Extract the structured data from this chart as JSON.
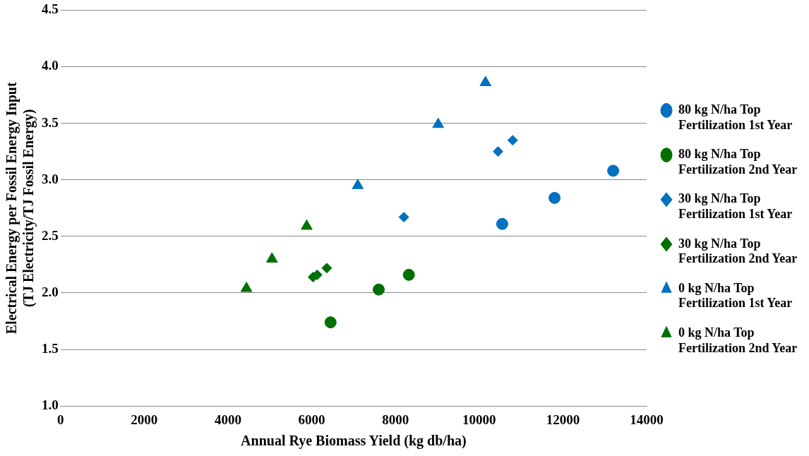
{
  "chart_data": {
    "type": "scatter",
    "xlabel": "Annual Rye Biomass Yield (kg db/ha)",
    "ylabel": "Electrical Energy per Fossil Energy Input (TJ Electricity/TJ Fossil Energy)",
    "xlim": [
      0,
      14000
    ],
    "xticks": [
      0,
      2000,
      4000,
      6000,
      8000,
      10000,
      12000,
      14000
    ],
    "ylim": [
      1,
      4.5
    ],
    "yticks": [
      {
        "value": 1,
        "label": "1.0"
      },
      {
        "value": 1.5,
        "label": "1.5"
      },
      {
        "value": 2,
        "label": "2.0"
      },
      {
        "value": 2.5,
        "label": "2.5"
      },
      {
        "value": 3,
        "label": "3.0"
      },
      {
        "value": 3.5,
        "label": "3.5"
      },
      {
        "value": 4,
        "label": "4.0"
      },
      {
        "value": 4.5,
        "label": "4.5"
      }
    ],
    "grid": "y",
    "legend": "right",
    "series": [
      {
        "name": "80 kg N/ha Top Fertilization 1st Year",
        "color": "#0070c0",
        "marker": "circle",
        "x": [
          10550,
          11800,
          13200
        ],
        "values": [
          2.61,
          2.84,
          3.08
        ]
      },
      {
        "name": "80 kg N/ha Top Fertilization 2nd Year",
        "color": "#007000",
        "marker": "circle",
        "x": [
          6450,
          7600,
          8320
        ],
        "values": [
          1.74,
          2.03,
          2.16
        ]
      },
      {
        "name": "30 kg N/ha Top Fertilization 1st Year",
        "color": "#0070c0",
        "marker": "diamond",
        "x": [
          8200,
          10450,
          10800
        ],
        "values": [
          2.67,
          3.25,
          3.35
        ]
      },
      {
        "name": "30 kg N/ha Top Fertilization 2nd Year",
        "color": "#007000",
        "marker": "diamond",
        "x": [
          6030,
          6130,
          6360
        ],
        "values": [
          2.14,
          2.16,
          2.22
        ]
      },
      {
        "name": "0 kg N/ha Top Fertilization 1st Year",
        "color": "#0070c0",
        "marker": "triangle",
        "x": [
          7100,
          9020,
          10150
        ],
        "values": [
          2.95,
          3.49,
          3.86
        ]
      },
      {
        "name": "0 kg N/ha Top Fertilization 2nd Year",
        "color": "#007000",
        "marker": "triangle",
        "x": [
          4440,
          5050,
          5880
        ],
        "values": [
          2.04,
          2.3,
          2.59
        ]
      }
    ]
  }
}
